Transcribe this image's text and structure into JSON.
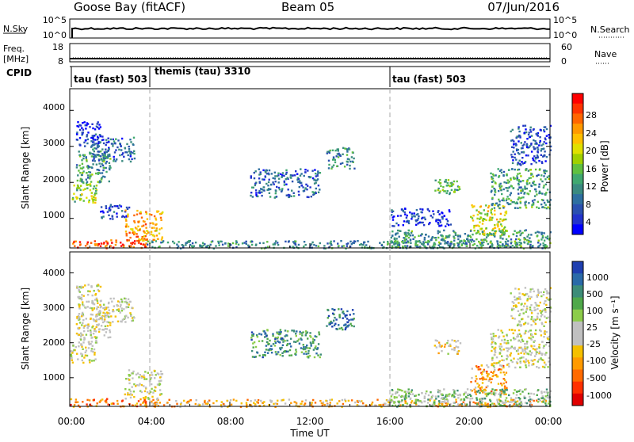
{
  "header": {
    "station": "Goose Bay (fitACF)",
    "beam": "Beam 05",
    "date": "07/Jun/2016"
  },
  "noise_panel": {
    "left_label": "N.Sky",
    "right_label": "N.Search",
    "left_ticks": [
      "10^5",
      "10^0"
    ],
    "right_ticks": [
      "10^5",
      "10^0"
    ]
  },
  "freq_panel": {
    "left_label_line1": "Freq.",
    "left_label_line2": "[MHz]",
    "right_label": "Nave",
    "left_ticks": [
      "18",
      "8"
    ],
    "right_ticks": [
      "60",
      "0"
    ]
  },
  "cpid": {
    "label": "CPID",
    "segments": [
      {
        "label": "tau (fast) 503",
        "start_hour": 0
      },
      {
        "label": "themis (tau) 3310",
        "start_hour": 4
      },
      {
        "label": "tau (fast) 503",
        "start_hour": 16
      }
    ]
  },
  "chart_data": [
    {
      "type": "heatmap",
      "parameter": "Power",
      "ylabel": "Slant Range [km]",
      "ylim": [
        180,
        4600
      ],
      "yticks": [
        "1000",
        "2000",
        "3000",
        "4000"
      ],
      "xlim_hours": [
        0,
        24
      ],
      "colorbar": {
        "label": "Power [dB]",
        "ticks": [
          "28",
          "24",
          "20",
          "16",
          "12",
          "8",
          "4"
        ],
        "colors": [
          "#ff0000",
          "#ff3300",
          "#ff6600",
          "#ff9900",
          "#ffc000",
          "#e0e000",
          "#a0d000",
          "#60c040",
          "#40a870",
          "#3a8a80",
          "#2e6fa0",
          "#2a50b0",
          "#2233cc",
          "#0000ff"
        ]
      },
      "regions": [
        {
          "t0": 0.0,
          "t1": 3.8,
          "r0": 190,
          "r1": 420,
          "level": 0.9
        },
        {
          "t0": 3.8,
          "t1": 23.8,
          "r0": 190,
          "r1": 400,
          "level": 0.3
        },
        {
          "t0": 0.0,
          "t1": 1.3,
          "r0": 1450,
          "r1": 2000,
          "level": 0.5
        },
        {
          "t0": 0.3,
          "t1": 2.0,
          "r0": 2000,
          "r1": 2900,
          "level": 0.35
        },
        {
          "t0": 1.0,
          "t1": 3.2,
          "r0": 2600,
          "r1": 3300,
          "level": 0.2
        },
        {
          "t0": 0.3,
          "t1": 1.5,
          "r0": 3000,
          "r1": 3700,
          "level": 0.1
        },
        {
          "t0": 1.5,
          "t1": 3.0,
          "r0": 1000,
          "r1": 1400,
          "level": 0.15
        },
        {
          "t0": 2.7,
          "t1": 4.6,
          "r0": 400,
          "r1": 1250,
          "level": 0.75
        },
        {
          "t0": 9.0,
          "t1": 12.5,
          "r0": 1600,
          "r1": 2400,
          "level": 0.2
        },
        {
          "t0": 12.8,
          "t1": 14.2,
          "r0": 2400,
          "r1": 3000,
          "level": 0.3
        },
        {
          "t0": 16.0,
          "t1": 19.0,
          "r0": 800,
          "r1": 1300,
          "level": 0.1
        },
        {
          "t0": 18.2,
          "t1": 19.5,
          "r0": 1700,
          "r1": 2100,
          "level": 0.4
        },
        {
          "t0": 20.0,
          "t1": 21.8,
          "r0": 550,
          "r1": 1400,
          "level": 0.6
        },
        {
          "t0": 21.0,
          "t1": 24.0,
          "r0": 1300,
          "r1": 2400,
          "level": 0.35
        },
        {
          "t0": 22.0,
          "t1": 24.0,
          "r0": 2500,
          "r1": 3600,
          "level": 0.15
        },
        {
          "t0": 16.0,
          "t1": 24.0,
          "r0": 190,
          "r1": 700,
          "level": 0.35
        }
      ]
    },
    {
      "type": "heatmap",
      "parameter": "Velocity",
      "ylabel": "Slant Range [km]",
      "ylim": [
        180,
        4600
      ],
      "yticks": [
        "1000",
        "2000",
        "3000",
        "4000"
      ],
      "xlim_hours": [
        0,
        24
      ],
      "xticks": [
        "00:00",
        "04:00",
        "08:00",
        "12:00",
        "16:00",
        "20:00",
        "00:00"
      ],
      "xlabel": "Time UT",
      "colorbar": {
        "label": "Velocity [m s⁻¹]",
        "ticks": [
          "1000",
          "500",
          "100",
          "25",
          "-25",
          "-100",
          "-500",
          "-1000"
        ],
        "colors": [
          "#1f3fb0",
          "#2a6aa8",
          "#3d8c78",
          "#4fa84a",
          "#8ccc4a",
          "#c0c0c0",
          "#c0c0c0",
          "#f5c000",
          "#ff9a00",
          "#ff6a00",
          "#ff3000",
          "#e00000"
        ]
      },
      "regions": [
        {
          "t0": 0.0,
          "t1": 3.8,
          "r0": 190,
          "r1": 420,
          "level": 0.2
        },
        {
          "t0": 3.8,
          "t1": 23.8,
          "r0": 190,
          "r1": 400,
          "level": 0.35
        },
        {
          "t0": 0.0,
          "t1": 1.3,
          "r0": 1450,
          "r1": 2000,
          "level": 0.5
        },
        {
          "t0": 0.3,
          "t1": 2.0,
          "r0": 2000,
          "r1": 2900,
          "level": 0.5
        },
        {
          "t0": 1.0,
          "t1": 3.2,
          "r0": 2600,
          "r1": 3300,
          "level": 0.5
        },
        {
          "t0": 0.3,
          "t1": 1.5,
          "r0": 3000,
          "r1": 3700,
          "level": 0.5
        },
        {
          "t0": 2.7,
          "t1": 4.6,
          "r0": 400,
          "r1": 1250,
          "level": 0.5
        },
        {
          "t0": 9.0,
          "t1": 12.5,
          "r0": 1600,
          "r1": 2400,
          "level": 0.8
        },
        {
          "t0": 12.8,
          "t1": 14.2,
          "r0": 2400,
          "r1": 3000,
          "level": 0.85
        },
        {
          "t0": 18.2,
          "t1": 19.5,
          "r0": 1700,
          "r1": 2100,
          "level": 0.45
        },
        {
          "t0": 20.0,
          "t1": 21.8,
          "r0": 550,
          "r1": 1400,
          "level": 0.3
        },
        {
          "t0": 21.0,
          "t1": 24.0,
          "r0": 1300,
          "r1": 2400,
          "level": 0.5
        },
        {
          "t0": 22.0,
          "t1": 24.0,
          "r0": 2500,
          "r1": 3600,
          "level": 0.5
        },
        {
          "t0": 16.0,
          "t1": 24.0,
          "r0": 190,
          "r1": 700,
          "level": 0.65
        }
      ]
    }
  ],
  "vertical_markers_hours": [
    4,
    16
  ]
}
